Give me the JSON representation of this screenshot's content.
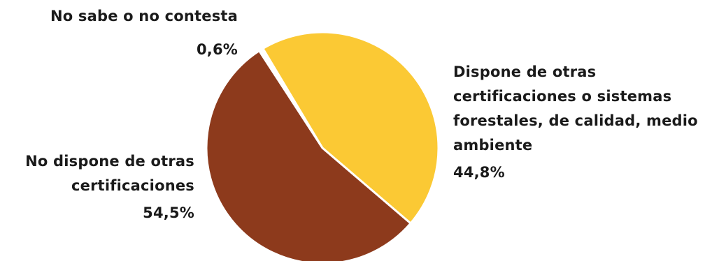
{
  "chart_data": {
    "type": "pie",
    "slices": [
      {
        "label": "No sabe o no contesta",
        "value_label": "0,6%",
        "value": 0.6,
        "color": "#ffffff"
      },
      {
        "label": "Dispone de otras certificaciones o sistemas forestales, de calidad, medio ambiente",
        "value_label": "44,8%",
        "value": 44.8,
        "color": "#fbc934"
      },
      {
        "label": "No dispone de otras certificaciones",
        "value_label": "54,5%",
        "value": 54.5,
        "color": "#8d3a1c"
      }
    ],
    "labels": {
      "no_sabe": {
        "lines": [
          "No sabe o no contesta"
        ],
        "pct": "0,6%"
      },
      "dispone": {
        "lines": [
          "Dispone de otras",
          "certificaciones o sistemas",
          "forestales, de calidad, medio",
          "ambiente"
        ],
        "pct": "44,8%"
      },
      "no_dispone": {
        "lines": [
          "No dispone de otras",
          "certificaciones"
        ],
        "pct": "54,5%"
      }
    }
  }
}
